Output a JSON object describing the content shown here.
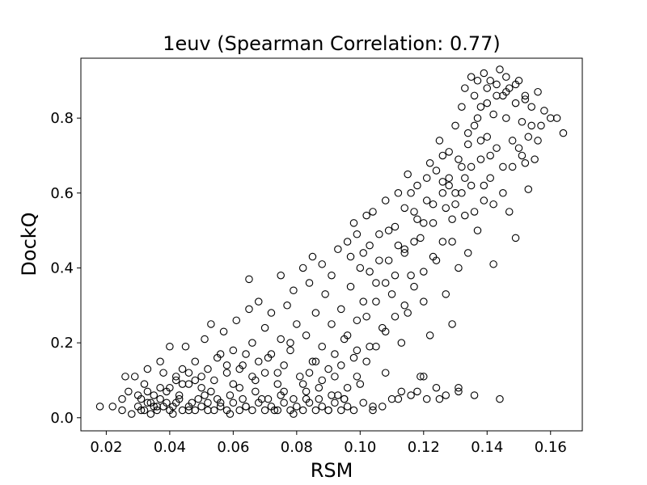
{
  "chart_data": {
    "type": "scatter",
    "title": "1euv (Spearman Correlation: 0.77)",
    "xlabel": "RSM",
    "ylabel": "DockQ",
    "xlim": [
      0.012,
      0.17
    ],
    "ylim": [
      -0.035,
      0.96
    ],
    "xticks": [
      0.02,
      0.04,
      0.06,
      0.08,
      0.1,
      0.12,
      0.14,
      0.16
    ],
    "xtick_labels": [
      "0.02",
      "0.04",
      "0.06",
      "0.08",
      "0.10",
      "0.12",
      "0.14",
      "0.16"
    ],
    "yticks": [
      0.0,
      0.2,
      0.4,
      0.6,
      0.8
    ],
    "ytick_labels": [
      "0.0",
      "0.2",
      "0.4",
      "0.6",
      "0.8"
    ],
    "grid": false,
    "legend": "none",
    "marker": "open-circle",
    "marker_color": "#000000",
    "points": [
      [
        0.018,
        0.03
      ],
      [
        0.022,
        0.03
      ],
      [
        0.025,
        0.02
      ],
      [
        0.025,
        0.05
      ],
      [
        0.026,
        0.11
      ],
      [
        0.027,
        0.07
      ],
      [
        0.028,
        0.01
      ],
      [
        0.029,
        0.11
      ],
      [
        0.03,
        0.06
      ],
      [
        0.031,
        0.02
      ],
      [
        0.032,
        0.09
      ],
      [
        0.033,
        0.13
      ],
      [
        0.033,
        0.04
      ],
      [
        0.034,
        0.01
      ],
      [
        0.035,
        0.06
      ],
      [
        0.036,
        0.03
      ],
      [
        0.037,
        0.15
      ],
      [
        0.037,
        0.08
      ],
      [
        0.038,
        0.12
      ],
      [
        0.039,
        0.04
      ],
      [
        0.04,
        0.19
      ],
      [
        0.041,
        0.01
      ],
      [
        0.042,
        0.1
      ],
      [
        0.043,
        0.06
      ],
      [
        0.044,
        0.13
      ],
      [
        0.045,
        0.19
      ],
      [
        0.046,
        0.02
      ],
      [
        0.046,
        0.09
      ],
      [
        0.048,
        0.15
      ],
      [
        0.049,
        0.05
      ],
      [
        0.05,
        0.11
      ],
      [
        0.051,
        0.21
      ],
      [
        0.052,
        0.02
      ],
      [
        0.053,
        0.25
      ],
      [
        0.053,
        0.07
      ],
      [
        0.055,
        0.16
      ],
      [
        0.056,
        0.04
      ],
      [
        0.057,
        0.23
      ],
      [
        0.058,
        0.12
      ],
      [
        0.059,
        0.01
      ],
      [
        0.06,
        0.18
      ],
      [
        0.061,
        0.26
      ],
      [
        0.062,
        0.08
      ],
      [
        0.063,
        0.14
      ],
      [
        0.064,
        0.03
      ],
      [
        0.065,
        0.29
      ],
      [
        0.065,
        0.37
      ],
      [
        0.066,
        0.2
      ],
      [
        0.067,
        0.1
      ],
      [
        0.068,
        0.31
      ],
      [
        0.069,
        0.05
      ],
      [
        0.07,
        0.24
      ],
      [
        0.071,
        0.16
      ],
      [
        0.072,
        0.28
      ],
      [
        0.073,
        0.02
      ],
      [
        0.074,
        0.12
      ],
      [
        0.075,
        0.38
      ],
      [
        0.075,
        0.21
      ],
      [
        0.076,
        0.07
      ],
      [
        0.077,
        0.3
      ],
      [
        0.078,
        0.18
      ],
      [
        0.079,
        0.34
      ],
      [
        0.079,
        0.01
      ],
      [
        0.08,
        0.25
      ],
      [
        0.081,
        0.11
      ],
      [
        0.082,
        0.4
      ],
      [
        0.083,
        0.22
      ],
      [
        0.083,
        0.05
      ],
      [
        0.084,
        0.36
      ],
      [
        0.085,
        0.43
      ],
      [
        0.085,
        0.15
      ],
      [
        0.086,
        0.28
      ],
      [
        0.087,
        0.08
      ],
      [
        0.088,
        0.41
      ],
      [
        0.088,
        0.19
      ],
      [
        0.089,
        0.33
      ],
      [
        0.09,
        0.02
      ],
      [
        0.091,
        0.25
      ],
      [
        0.091,
        0.38
      ],
      [
        0.092,
        0.11
      ],
      [
        0.093,
        0.45
      ],
      [
        0.094,
        0.29
      ],
      [
        0.095,
        0.21
      ],
      [
        0.095,
        0.05
      ],
      [
        0.096,
        0.47
      ],
      [
        0.097,
        0.35
      ],
      [
        0.098,
        0.16
      ],
      [
        0.098,
        0.52
      ],
      [
        0.099,
        0.26
      ],
      [
        0.1,
        0.4
      ],
      [
        0.1,
        0.09
      ],
      [
        0.101,
        0.31
      ],
      [
        0.102,
        0.54
      ],
      [
        0.103,
        0.19
      ],
      [
        0.103,
        0.46
      ],
      [
        0.104,
        0.03
      ],
      [
        0.105,
        0.36
      ],
      [
        0.106,
        0.49
      ],
      [
        0.107,
        0.24
      ],
      [
        0.108,
        0.58
      ],
      [
        0.108,
        0.12
      ],
      [
        0.109,
        0.42
      ],
      [
        0.11,
        0.33
      ],
      [
        0.111,
        0.51
      ],
      [
        0.112,
        0.05
      ],
      [
        0.112,
        0.6
      ],
      [
        0.113,
        0.2
      ],
      [
        0.114,
        0.45
      ],
      [
        0.115,
        0.65
      ],
      [
        0.115,
        0.28
      ],
      [
        0.116,
        0.38
      ],
      [
        0.117,
        0.55
      ],
      [
        0.118,
        0.07
      ],
      [
        0.118,
        0.62
      ],
      [
        0.119,
        0.48
      ],
      [
        0.12,
        0.31
      ],
      [
        0.12,
        0.11
      ],
      [
        0.121,
        0.58
      ],
      [
        0.122,
        0.68
      ],
      [
        0.122,
        0.22
      ],
      [
        0.123,
        0.52
      ],
      [
        0.124,
        0.42
      ],
      [
        0.125,
        0.74
      ],
      [
        0.125,
        0.05
      ],
      [
        0.126,
        0.63
      ],
      [
        0.127,
        0.33
      ],
      [
        0.127,
        0.56
      ],
      [
        0.128,
        0.71
      ],
      [
        0.129,
        0.47
      ],
      [
        0.129,
        0.25
      ],
      [
        0.13,
        0.78
      ],
      [
        0.13,
        0.6
      ],
      [
        0.131,
        0.08
      ],
      [
        0.131,
        0.4
      ],
      [
        0.132,
        0.83
      ],
      [
        0.132,
        0.67
      ],
      [
        0.133,
        0.54
      ],
      [
        0.133,
        0.88
      ],
      [
        0.134,
        0.73
      ],
      [
        0.134,
        0.44
      ],
      [
        0.135,
        0.91
      ],
      [
        0.135,
        0.62
      ],
      [
        0.136,
        0.86
      ],
      [
        0.136,
        0.78
      ],
      [
        0.137,
        0.5
      ],
      [
        0.137,
        0.9
      ],
      [
        0.138,
        0.69
      ],
      [
        0.138,
        0.83
      ],
      [
        0.139,
        0.58
      ],
      [
        0.139,
        0.92
      ],
      [
        0.14,
        0.75
      ],
      [
        0.14,
        0.88
      ],
      [
        0.141,
        0.64
      ],
      [
        0.141,
        0.9
      ],
      [
        0.142,
        0.81
      ],
      [
        0.142,
        0.41
      ],
      [
        0.143,
        0.89
      ],
      [
        0.143,
        0.72
      ],
      [
        0.144,
        0.93
      ],
      [
        0.144,
        0.05
      ],
      [
        0.145,
        0.86
      ],
      [
        0.145,
        0.67
      ],
      [
        0.146,
        0.8
      ],
      [
        0.146,
        0.91
      ],
      [
        0.147,
        0.55
      ],
      [
        0.147,
        0.88
      ],
      [
        0.148,
        0.74
      ],
      [
        0.149,
        0.84
      ],
      [
        0.149,
        0.48
      ],
      [
        0.15,
        0.9
      ],
      [
        0.151,
        0.7
      ],
      [
        0.151,
        0.79
      ],
      [
        0.152,
        0.86
      ],
      [
        0.153,
        0.61
      ],
      [
        0.153,
        0.75
      ],
      [
        0.154,
        0.83
      ],
      [
        0.155,
        0.69
      ],
      [
        0.156,
        0.87
      ],
      [
        0.157,
        0.78
      ],
      [
        0.158,
        0.82
      ],
      [
        0.16,
        0.8
      ],
      [
        0.162,
        0.8
      ],
      [
        0.164,
        0.76
      ],
      [
        0.03,
        0.03
      ],
      [
        0.032,
        0.02
      ],
      [
        0.034,
        0.04
      ],
      [
        0.036,
        0.02
      ],
      [
        0.038,
        0.03
      ],
      [
        0.04,
        0.02
      ],
      [
        0.042,
        0.04
      ],
      [
        0.044,
        0.02
      ],
      [
        0.046,
        0.03
      ],
      [
        0.048,
        0.02
      ],
      [
        0.05,
        0.03
      ],
      [
        0.052,
        0.04
      ],
      [
        0.054,
        0.02
      ],
      [
        0.056,
        0.03
      ],
      [
        0.058,
        0.02
      ],
      [
        0.06,
        0.04
      ],
      [
        0.062,
        0.02
      ],
      [
        0.064,
        0.03
      ],
      [
        0.066,
        0.02
      ],
      [
        0.068,
        0.04
      ],
      [
        0.07,
        0.02
      ],
      [
        0.072,
        0.03
      ],
      [
        0.074,
        0.02
      ],
      [
        0.076,
        0.04
      ],
      [
        0.078,
        0.02
      ],
      [
        0.08,
        0.03
      ],
      [
        0.082,
        0.02
      ],
      [
        0.084,
        0.04
      ],
      [
        0.086,
        0.02
      ],
      [
        0.088,
        0.03
      ],
      [
        0.09,
        0.02
      ],
      [
        0.092,
        0.04
      ],
      [
        0.094,
        0.02
      ],
      [
        0.096,
        0.03
      ],
      [
        0.098,
        0.02
      ],
      [
        0.101,
        0.04
      ],
      [
        0.104,
        0.02
      ],
      [
        0.107,
        0.03
      ],
      [
        0.11,
        0.05
      ],
      [
        0.113,
        0.07
      ],
      [
        0.116,
        0.06
      ],
      [
        0.119,
        0.11
      ],
      [
        0.121,
        0.05
      ],
      [
        0.124,
        0.08
      ],
      [
        0.127,
        0.06
      ],
      [
        0.131,
        0.07
      ],
      [
        0.136,
        0.06
      ],
      [
        0.031,
        0.05
      ],
      [
        0.033,
        0.07
      ],
      [
        0.035,
        0.03
      ],
      [
        0.037,
        0.05
      ],
      [
        0.039,
        0.07
      ],
      [
        0.041,
        0.03
      ],
      [
        0.043,
        0.05
      ],
      [
        0.047,
        0.04
      ],
      [
        0.051,
        0.06
      ],
      [
        0.055,
        0.05
      ],
      [
        0.059,
        0.06
      ],
      [
        0.063,
        0.05
      ],
      [
        0.067,
        0.07
      ],
      [
        0.071,
        0.05
      ],
      [
        0.075,
        0.06
      ],
      [
        0.079,
        0.05
      ],
      [
        0.083,
        0.07
      ],
      [
        0.087,
        0.05
      ],
      [
        0.091,
        0.06
      ],
      [
        0.095,
        0.05
      ],
      [
        0.082,
        0.09
      ],
      [
        0.084,
        0.12
      ],
      [
        0.086,
        0.15
      ],
      [
        0.088,
        0.1
      ],
      [
        0.09,
        0.13
      ],
      [
        0.092,
        0.17
      ],
      [
        0.094,
        0.14
      ],
      [
        0.096,
        0.22
      ],
      [
        0.099,
        0.18
      ],
      [
        0.102,
        0.27
      ],
      [
        0.105,
        0.31
      ],
      [
        0.108,
        0.36
      ],
      [
        0.111,
        0.38
      ],
      [
        0.114,
        0.44
      ],
      [
        0.117,
        0.47
      ],
      [
        0.12,
        0.52
      ],
      [
        0.123,
        0.57
      ],
      [
        0.126,
        0.6
      ],
      [
        0.128,
        0.64
      ],
      [
        0.131,
        0.69
      ],
      [
        0.134,
        0.76
      ],
      [
        0.137,
        0.8
      ],
      [
        0.14,
        0.84
      ],
      [
        0.143,
        0.86
      ],
      [
        0.146,
        0.87
      ],
      [
        0.149,
        0.89
      ],
      [
        0.152,
        0.85
      ],
      [
        0.154,
        0.78
      ],
      [
        0.156,
        0.74
      ],
      [
        0.141,
        0.7
      ],
      [
        0.138,
        0.74
      ],
      [
        0.135,
        0.67
      ],
      [
        0.132,
        0.6
      ],
      [
        0.129,
        0.53
      ],
      [
        0.126,
        0.47
      ],
      [
        0.123,
        0.43
      ],
      [
        0.12,
        0.39
      ],
      [
        0.117,
        0.35
      ],
      [
        0.114,
        0.3
      ],
      [
        0.111,
        0.27
      ],
      [
        0.108,
        0.23
      ],
      [
        0.105,
        0.19
      ],
      [
        0.102,
        0.15
      ],
      [
        0.099,
        0.11
      ],
      [
        0.096,
        0.08
      ],
      [
        0.093,
        0.06
      ],
      [
        0.07,
        0.12
      ],
      [
        0.072,
        0.17
      ],
      [
        0.074,
        0.09
      ],
      [
        0.076,
        0.14
      ],
      [
        0.078,
        0.2
      ],
      [
        0.06,
        0.09
      ],
      [
        0.062,
        0.13
      ],
      [
        0.064,
        0.17
      ],
      [
        0.066,
        0.11
      ],
      [
        0.068,
        0.15
      ],
      [
        0.05,
        0.08
      ],
      [
        0.052,
        0.13
      ],
      [
        0.054,
        0.1
      ],
      [
        0.056,
        0.17
      ],
      [
        0.058,
        0.14
      ],
      [
        0.04,
        0.08
      ],
      [
        0.042,
        0.11
      ],
      [
        0.044,
        0.09
      ],
      [
        0.046,
        0.12
      ],
      [
        0.048,
        0.1
      ],
      [
        0.097,
        0.43
      ],
      [
        0.099,
        0.49
      ],
      [
        0.101,
        0.44
      ],
      [
        0.103,
        0.39
      ],
      [
        0.104,
        0.55
      ],
      [
        0.106,
        0.42
      ],
      [
        0.109,
        0.5
      ],
      [
        0.112,
        0.46
      ],
      [
        0.114,
        0.56
      ],
      [
        0.116,
        0.6
      ],
      [
        0.118,
        0.53
      ],
      [
        0.121,
        0.64
      ],
      [
        0.124,
        0.66
      ],
      [
        0.126,
        0.7
      ],
      [
        0.128,
        0.62
      ],
      [
        0.13,
        0.57
      ],
      [
        0.133,
        0.64
      ],
      [
        0.136,
        0.55
      ],
      [
        0.139,
        0.62
      ],
      [
        0.142,
        0.57
      ],
      [
        0.145,
        0.6
      ],
      [
        0.148,
        0.67
      ],
      [
        0.15,
        0.72
      ],
      [
        0.152,
        0.68
      ]
    ]
  }
}
